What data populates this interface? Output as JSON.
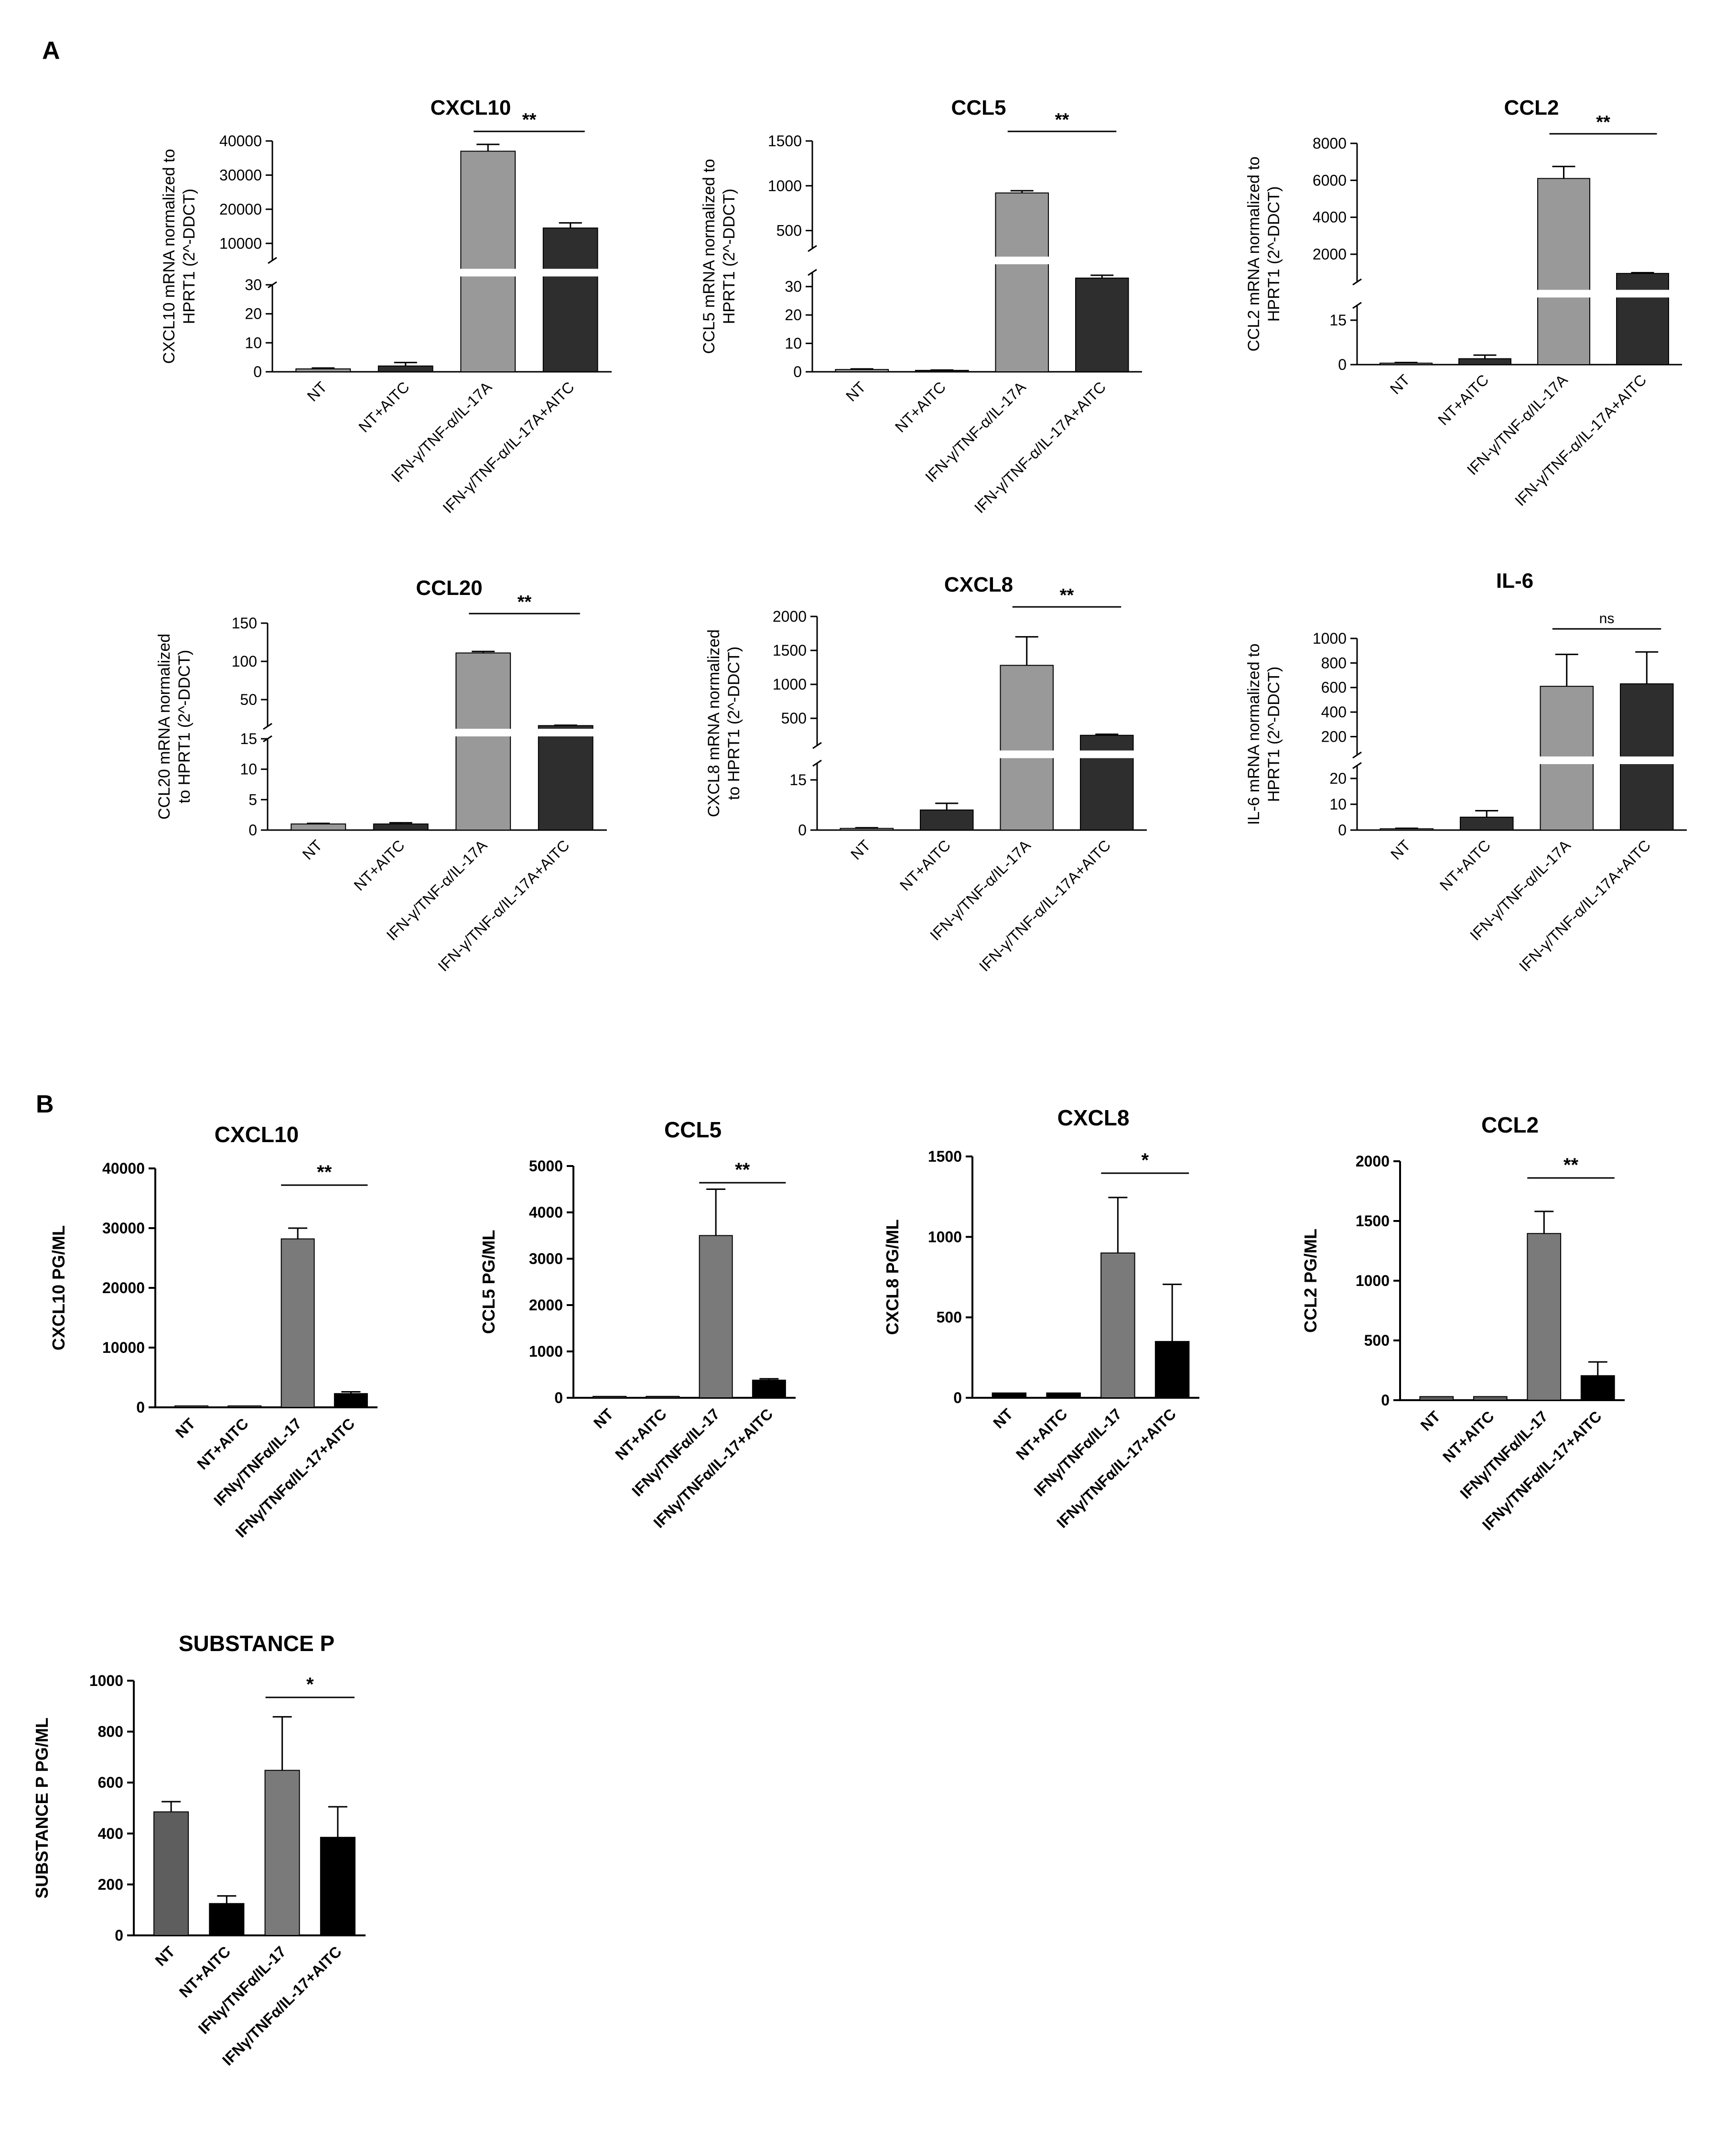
{
  "panels": {
    "a": "A",
    "b": "B"
  },
  "colors": {
    "light": "#999999",
    "dark": "#2e2e2e",
    "b_gray": "#7a7a7a",
    "b_dark": "#5e5e5e",
    "b_black": "#000000"
  },
  "chart_data": [
    {
      "type": "bar",
      "panel": "A",
      "title": "CXCL10",
      "ylabel": [
        "CXCL10 mRNA normalized to",
        "HPRT1 (2^-DDCT)"
      ],
      "categories": [
        "NT",
        "NT+AITC",
        "IFN-γ/TNF-α/IL-17A",
        "IFN-γ/TNF-α/IL-17A+AITC"
      ],
      "values": [
        1,
        2,
        37000,
        14500
      ],
      "errors": [
        0.3,
        1.2,
        2000,
        1500
      ],
      "broken_axis": {
        "lower": [
          0,
          30
        ],
        "upper": [
          5000,
          40000
        ]
      },
      "yticks_lower": [
        "0",
        "10",
        "20",
        "30"
      ],
      "yticks_upper": [
        "10000",
        "20000",
        "30000",
        "40000"
      ],
      "significance": {
        "label": "**",
        "between": [
          2,
          3
        ]
      }
    },
    {
      "type": "bar",
      "panel": "A",
      "title": "CCL5",
      "ylabel": [
        "CCL5 mRNA normalized to",
        "HPRT1 (2^-DDCT)"
      ],
      "categories": [
        "NT",
        "NT+AITC",
        "IFN-γ/TNF-α/IL-17A",
        "IFN-γ/TNF-α/IL-17A+AITC"
      ],
      "values": [
        0.8,
        0.5,
        920,
        33
      ],
      "errors": [
        0.2,
        0.1,
        25,
        1
      ],
      "broken_axis": {
        "lower": [
          0,
          35
        ],
        "upper": [
          300,
          1500
        ]
      },
      "yticks_lower": [
        "0",
        "10",
        "20",
        "30"
      ],
      "yticks_upper": [
        "500",
        "1000",
        "1500"
      ],
      "significance": {
        "label": "**",
        "between": [
          2,
          3
        ]
      }
    },
    {
      "type": "bar",
      "panel": "A",
      "title": "CCL2",
      "ylabel": [
        "CCL2 mRNA normalized to",
        "HPRT1 (2^-DDCT)"
      ],
      "categories": [
        "NT",
        "NT+AITC",
        "IFN-γ/TNF-α/IL-17A",
        "IFN-γ/TNF-α/IL-17A+AITC"
      ],
      "values": [
        0.5,
        2,
        6100,
        960
      ],
      "errors": [
        0.2,
        1.2,
        650,
        40
      ],
      "broken_axis": {
        "lower": [
          0,
          20
        ],
        "upper": [
          500,
          8000
        ]
      },
      "yticks_lower": [
        "0",
        "15"
      ],
      "yticks_upper": [
        "2000",
        "4000",
        "6000",
        "8000"
      ],
      "significance": {
        "label": "**",
        "between": [
          2,
          3
        ]
      }
    },
    {
      "type": "bar",
      "panel": "A",
      "title": "CCL20",
      "ylabel": [
        "CCL20 mRNA normalized",
        "to HPRT1 (2^-DDCT)"
      ],
      "categories": [
        "NT",
        "NT+AITC",
        "IFN-γ/TNF-α/IL-17A",
        "IFN-γ/TNF-α/IL-17A+AITC"
      ],
      "values": [
        1,
        1,
        111,
        16
      ],
      "errors": [
        0.1,
        0.2,
        2,
        0.5
      ],
      "broken_axis": {
        "lower": [
          0,
          15
        ],
        "upper": [
          15,
          150
        ]
      },
      "yticks_lower": [
        "0",
        "5",
        "10",
        "15"
      ],
      "yticks_upper": [
        "50",
        "100",
        "150"
      ],
      "significance": {
        "label": "**",
        "between": [
          2,
          3
        ]
      }
    },
    {
      "type": "bar",
      "panel": "A",
      "title": "CXCL8",
      "ylabel": [
        "CXCL8 mRNA normalized",
        "to HPRT1 (2^-DDCT)"
      ],
      "categories": [
        "NT",
        "NT+AITC",
        "IFN-γ/TNF-α/IL-17A",
        "IFN-γ/TNF-α/IL-17A+AITC"
      ],
      "values": [
        0.5,
        6,
        1280,
        250
      ],
      "errors": [
        0.2,
        2,
        420,
        15
      ],
      "broken_axis": {
        "lower": [
          0,
          20
        ],
        "upper": [
          100,
          2000
        ]
      },
      "yticks_lower": [
        "0",
        "15"
      ],
      "yticks_upper": [
        "500",
        "1000",
        "1500",
        "2000"
      ],
      "significance": {
        "label": "**",
        "between": [
          2,
          3
        ]
      }
    },
    {
      "type": "bar",
      "panel": "A",
      "title": "IL-6",
      "ylabel": [
        "IL-6 mRNA normalized to",
        "HPRT1 (2^-DDCT)"
      ],
      "categories": [
        "NT",
        "NT+AITC",
        "IFN-γ/TNF-α/IL-17A",
        "IFN-γ/TNF-α/IL-17A+AITC"
      ],
      "values": [
        0.5,
        5,
        610,
        630
      ],
      "errors": [
        0.2,
        2.5,
        260,
        260
      ],
      "broken_axis": {
        "lower": [
          0,
          25
        ],
        "upper": [
          50,
          1000
        ]
      },
      "yticks_lower": [
        "0",
        "10",
        "20"
      ],
      "yticks_upper": [
        "200",
        "400",
        "600",
        "800",
        "1000"
      ],
      "significance": {
        "label": "ns",
        "between": [
          2,
          3
        ]
      }
    },
    {
      "type": "bar",
      "panel": "B",
      "title": "CXCL10",
      "ylabel": "CXCL10 PG/ML",
      "categories": [
        "NT",
        "NT+AITC",
        "IFNγ/TNFα/IL-17",
        "IFNγ/TNFα/IL-17+AITC"
      ],
      "values": [
        0,
        0,
        28200,
        2300
      ],
      "errors": [
        0,
        0,
        1800,
        300
      ],
      "ylim": [
        0,
        40000
      ],
      "yticks": [
        "0",
        "10000",
        "20000",
        "30000",
        "40000"
      ],
      "significance": {
        "label": "**",
        "between": [
          2,
          3
        ]
      }
    },
    {
      "type": "bar",
      "panel": "B",
      "title": "CCL5",
      "ylabel": "CCL5 PG/ML",
      "categories": [
        "NT",
        "NT+AITC",
        "IFNγ/TNFα/IL-17",
        "IFNγ/TNFα/IL-17+AITC"
      ],
      "values": [
        0,
        0,
        3500,
        380
      ],
      "errors": [
        0,
        0,
        1000,
        30
      ],
      "ylim": [
        0,
        5000
      ],
      "yticks": [
        "0",
        "1000",
        "2000",
        "3000",
        "4000",
        "5000"
      ],
      "significance": {
        "label": "**",
        "between": [
          2,
          3
        ]
      }
    },
    {
      "type": "bar",
      "panel": "B",
      "title": "CXCL8",
      "ylabel": "CXCL8 PG/ML",
      "categories": [
        "NT",
        "NT+AITC",
        "IFNγ/TNFα/IL-17",
        "IFNγ/TNFα/IL-17+AITC"
      ],
      "values": [
        30,
        30,
        900,
        350
      ],
      "errors": [
        0,
        0,
        345,
        355
      ],
      "ylim": [
        0,
        1500
      ],
      "yticks": [
        "0",
        "500",
        "1000",
        "1500"
      ],
      "significance": {
        "label": "*",
        "between": [
          2,
          3
        ]
      }
    },
    {
      "type": "bar",
      "panel": "B",
      "title": "CCL2",
      "ylabel": "CCL2 PG/ML",
      "categories": [
        "NT",
        "NT+AITC",
        "IFNγ/TNFα/IL-17",
        "IFNγ/TNFα/IL-17+AITC"
      ],
      "values": [
        30,
        30,
        1395,
        205
      ],
      "errors": [
        0,
        0,
        185,
        115
      ],
      "ylim": [
        0,
        2000
      ],
      "yticks": [
        "0",
        "500",
        "1000",
        "1500",
        "2000"
      ],
      "significance": {
        "label": "**",
        "between": [
          2,
          3
        ]
      }
    },
    {
      "type": "bar",
      "panel": "B",
      "title": "SUBSTANCE P",
      "ylabel": "SUBSTANCE P PG/ML",
      "categories": [
        "NT",
        "NT+AITC",
        "IFNγ/TNFα/IL-17",
        "IFNγ/TNFα/IL-17+AITC"
      ],
      "values": [
        485,
        125,
        648,
        385
      ],
      "errors": [
        40,
        30,
        210,
        120
      ],
      "ylim": [
        0,
        1000
      ],
      "yticks": [
        "0",
        "200",
        "400",
        "600",
        "800",
        "1000"
      ],
      "significance": {
        "label": "*",
        "between": [
          2,
          3
        ]
      }
    }
  ]
}
